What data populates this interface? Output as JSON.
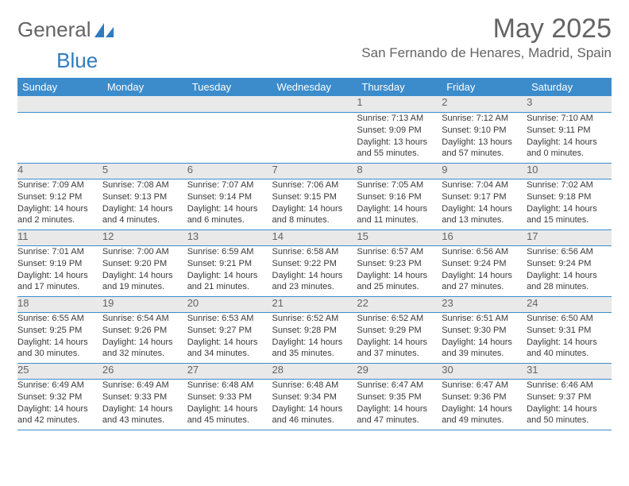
{
  "logo": {
    "text1": "General",
    "text2": "Blue"
  },
  "title": "May 2025",
  "location": "San Fernando de Henares, Madrid, Spain",
  "colors": {
    "header_bg": "#3c8ccc",
    "header_text": "#ffffff",
    "daynum_bg": "#e9e9e9",
    "border": "#3c8ccc",
    "body_text": "#3a3a3a",
    "muted": "#646464",
    "logo_blue": "#2f7bbf"
  },
  "weekdays": [
    "Sunday",
    "Monday",
    "Tuesday",
    "Wednesday",
    "Thursday",
    "Friday",
    "Saturday"
  ],
  "weeks": [
    {
      "nums": [
        "",
        "",
        "",
        "",
        "1",
        "2",
        "3"
      ],
      "details": [
        "",
        "",
        "",
        "",
        "Sunrise: 7:13 AM\nSunset: 9:09 PM\nDaylight: 13 hours and 55 minutes.",
        "Sunrise: 7:12 AM\nSunset: 9:10 PM\nDaylight: 13 hours and 57 minutes.",
        "Sunrise: 7:10 AM\nSunset: 9:11 PM\nDaylight: 14 hours and 0 minutes."
      ]
    },
    {
      "nums": [
        "4",
        "5",
        "6",
        "7",
        "8",
        "9",
        "10"
      ],
      "details": [
        "Sunrise: 7:09 AM\nSunset: 9:12 PM\nDaylight: 14 hours and 2 minutes.",
        "Sunrise: 7:08 AM\nSunset: 9:13 PM\nDaylight: 14 hours and 4 minutes.",
        "Sunrise: 7:07 AM\nSunset: 9:14 PM\nDaylight: 14 hours and 6 minutes.",
        "Sunrise: 7:06 AM\nSunset: 9:15 PM\nDaylight: 14 hours and 8 minutes.",
        "Sunrise: 7:05 AM\nSunset: 9:16 PM\nDaylight: 14 hours and 11 minutes.",
        "Sunrise: 7:04 AM\nSunset: 9:17 PM\nDaylight: 14 hours and 13 minutes.",
        "Sunrise: 7:02 AM\nSunset: 9:18 PM\nDaylight: 14 hours and 15 minutes."
      ]
    },
    {
      "nums": [
        "11",
        "12",
        "13",
        "14",
        "15",
        "16",
        "17"
      ],
      "details": [
        "Sunrise: 7:01 AM\nSunset: 9:19 PM\nDaylight: 14 hours and 17 minutes.",
        "Sunrise: 7:00 AM\nSunset: 9:20 PM\nDaylight: 14 hours and 19 minutes.",
        "Sunrise: 6:59 AM\nSunset: 9:21 PM\nDaylight: 14 hours and 21 minutes.",
        "Sunrise: 6:58 AM\nSunset: 9:22 PM\nDaylight: 14 hours and 23 minutes.",
        "Sunrise: 6:57 AM\nSunset: 9:23 PM\nDaylight: 14 hours and 25 minutes.",
        "Sunrise: 6:56 AM\nSunset: 9:24 PM\nDaylight: 14 hours and 27 minutes.",
        "Sunrise: 6:56 AM\nSunset: 9:24 PM\nDaylight: 14 hours and 28 minutes."
      ]
    },
    {
      "nums": [
        "18",
        "19",
        "20",
        "21",
        "22",
        "23",
        "24"
      ],
      "details": [
        "Sunrise: 6:55 AM\nSunset: 9:25 PM\nDaylight: 14 hours and 30 minutes.",
        "Sunrise: 6:54 AM\nSunset: 9:26 PM\nDaylight: 14 hours and 32 minutes.",
        "Sunrise: 6:53 AM\nSunset: 9:27 PM\nDaylight: 14 hours and 34 minutes.",
        "Sunrise: 6:52 AM\nSunset: 9:28 PM\nDaylight: 14 hours and 35 minutes.",
        "Sunrise: 6:52 AM\nSunset: 9:29 PM\nDaylight: 14 hours and 37 minutes.",
        "Sunrise: 6:51 AM\nSunset: 9:30 PM\nDaylight: 14 hours and 39 minutes.",
        "Sunrise: 6:50 AM\nSunset: 9:31 PM\nDaylight: 14 hours and 40 minutes."
      ]
    },
    {
      "nums": [
        "25",
        "26",
        "27",
        "28",
        "29",
        "30",
        "31"
      ],
      "details": [
        "Sunrise: 6:49 AM\nSunset: 9:32 PM\nDaylight: 14 hours and 42 minutes.",
        "Sunrise: 6:49 AM\nSunset: 9:33 PM\nDaylight: 14 hours and 43 minutes.",
        "Sunrise: 6:48 AM\nSunset: 9:33 PM\nDaylight: 14 hours and 45 minutes.",
        "Sunrise: 6:48 AM\nSunset: 9:34 PM\nDaylight: 14 hours and 46 minutes.",
        "Sunrise: 6:47 AM\nSunset: 9:35 PM\nDaylight: 14 hours and 47 minutes.",
        "Sunrise: 6:47 AM\nSunset: 9:36 PM\nDaylight: 14 hours and 49 minutes.",
        "Sunrise: 6:46 AM\nSunset: 9:37 PM\nDaylight: 14 hours and 50 minutes."
      ]
    }
  ]
}
